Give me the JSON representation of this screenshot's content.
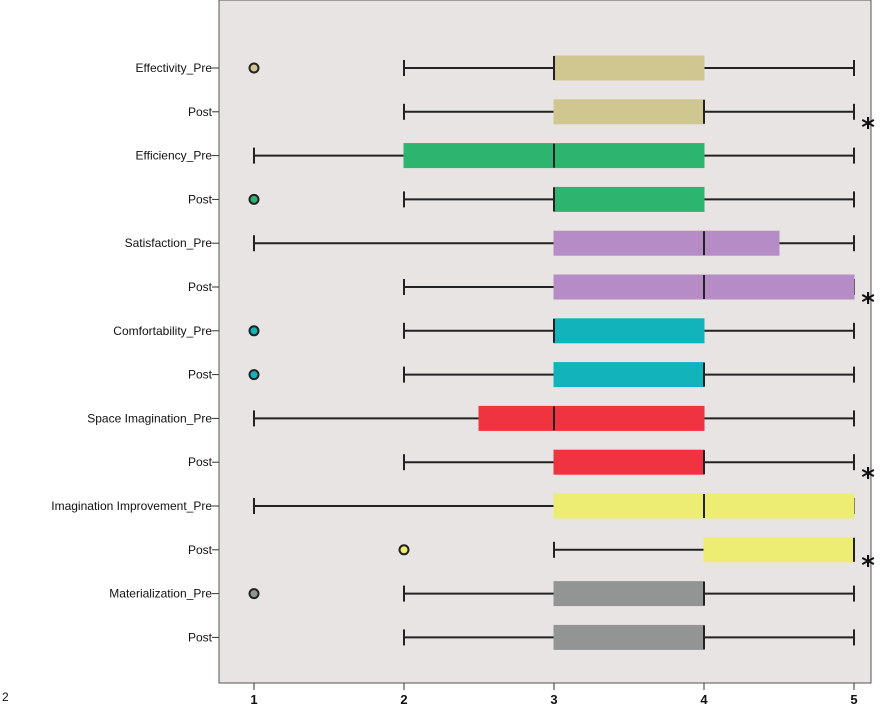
{
  "chart_data": {
    "type": "boxplot",
    "orientation": "horizontal",
    "xlim": [
      1,
      5
    ],
    "x_ticks": [
      "1",
      "2",
      "3",
      "4",
      "5"
    ],
    "background": "#e9e4e4",
    "categories": [
      "Effectivity_Pre",
      "Post",
      "Efficiency_Pre",
      "Post",
      "Satisfaction_Pre",
      "Post",
      "Comfortability_Pre",
      "Post",
      "Space Imagination_Pre",
      "Post",
      "Imagination Improvement_Pre",
      "Post",
      "Materialization_Pre",
      "Post"
    ],
    "boxes": [
      {
        "label": "Effectivity_Pre",
        "min": 2,
        "q1": 3,
        "median": 3,
        "q3": 4,
        "max": 5,
        "outliers": [
          1
        ],
        "extremes": [],
        "color": "#cfc78f"
      },
      {
        "label": "Post",
        "min": 2,
        "q1": 3,
        "median": 4,
        "q3": 4,
        "max": 5,
        "outliers": [],
        "extremes": [
          5
        ],
        "color": "#cfc78f"
      },
      {
        "label": "Efficiency_Pre",
        "min": 1,
        "q1": 2,
        "median": 3,
        "q3": 4,
        "max": 5,
        "outliers": [],
        "extremes": [],
        "color": "#2db46e"
      },
      {
        "label": "Post",
        "min": 2,
        "q1": 3,
        "median": 3,
        "q3": 4,
        "max": 5,
        "outliers": [
          1
        ],
        "extremes": [],
        "color": "#2db46e"
      },
      {
        "label": "Satisfaction_Pre",
        "min": 1,
        "q1": 3,
        "median": 4,
        "q3": 4.5,
        "max": 5,
        "outliers": [],
        "extremes": [],
        "color": "#b68cc6"
      },
      {
        "label": "Post",
        "min": 2,
        "q1": 3,
        "median": 4,
        "q3": 5,
        "max": 5,
        "outliers": [],
        "extremes": [
          5
        ],
        "color": "#b68cc6"
      },
      {
        "label": "Comfortability_Pre",
        "min": 2,
        "q1": 3,
        "median": 3,
        "q3": 4,
        "max": 5,
        "outliers": [
          1
        ],
        "extremes": [],
        "color": "#12b3bb"
      },
      {
        "label": "Post",
        "min": 2,
        "q1": 3,
        "median": 4,
        "q3": 4,
        "max": 5,
        "outliers": [
          1
        ],
        "extremes": [],
        "color": "#12b3bb"
      },
      {
        "label": "Space Imagination_Pre",
        "min": 1,
        "q1": 2.5,
        "median": 3,
        "q3": 4,
        "max": 5,
        "outliers": [],
        "extremes": [],
        "color": "#ef3340"
      },
      {
        "label": "Post",
        "min": 2,
        "q1": 3,
        "median": 4,
        "q3": 4,
        "max": 5,
        "outliers": [],
        "extremes": [
          5
        ],
        "color": "#ef3340"
      },
      {
        "label": "Imagination Improvement_Pre",
        "min": 1,
        "q1": 3,
        "median": 4,
        "q3": 5,
        "max": 5,
        "outliers": [],
        "extremes": [],
        "color": "#eded73"
      },
      {
        "label": "Post",
        "min": 3,
        "q1": 4,
        "median": 5,
        "q3": 5,
        "max": 5,
        "outliers": [
          2
        ],
        "extremes": [
          5
        ],
        "color": "#eded73"
      },
      {
        "label": "Materialization_Pre",
        "min": 2,
        "q1": 3,
        "median": 4,
        "q3": 4,
        "max": 5,
        "outliers": [
          1
        ],
        "extremes": [],
        "color": "#939595"
      },
      {
        "label": "Post",
        "min": 2,
        "q1": 3,
        "median": 4,
        "q3": 4,
        "max": 5,
        "outliers": [],
        "extremes": [],
        "color": "#939595"
      }
    ]
  },
  "corner_text": "2",
  "extreme_marker": "*"
}
